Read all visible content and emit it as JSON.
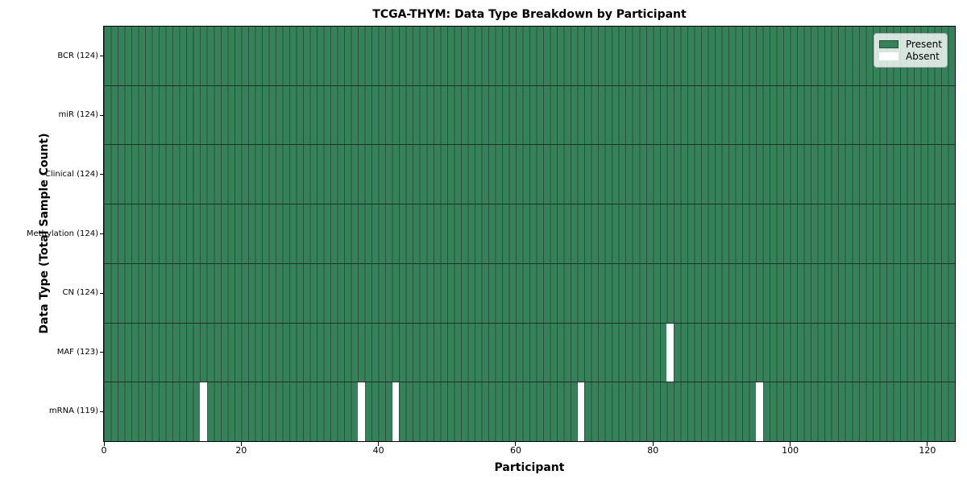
{
  "chart_data": {
    "type": "heatmap",
    "title": "TCGA-THYM: Data Type Breakdown by Participant",
    "xlabel": "Participant",
    "ylabel": "Data Type (Total Sample Count)",
    "x_ticks": [
      0,
      20,
      40,
      60,
      80,
      100,
      120
    ],
    "x_range": [
      0,
      124
    ],
    "n_participants": 124,
    "rows": [
      {
        "label": "BCR (124)",
        "data_type": "BCR",
        "present_count": 124,
        "absent_participants": []
      },
      {
        "label": "miR (124)",
        "data_type": "miR",
        "present_count": 124,
        "absent_participants": []
      },
      {
        "label": "Clinical (124)",
        "data_type": "Clinical",
        "present_count": 124,
        "absent_participants": []
      },
      {
        "label": "Methylation (124)",
        "data_type": "Methylation",
        "present_count": 124,
        "absent_participants": []
      },
      {
        "label": "CN (124)",
        "data_type": "CN",
        "present_count": 124,
        "absent_participants": []
      },
      {
        "label": "MAF (123)",
        "data_type": "MAF",
        "present_count": 123,
        "absent_participants": [
          82
        ]
      },
      {
        "label": "mRNA (119)",
        "data_type": "mRNA",
        "present_count": 119,
        "absent_participants": [
          14,
          37,
          42,
          69,
          95
        ]
      }
    ],
    "legend": [
      {
        "label": "Present",
        "color": "#35815A",
        "edge": "#24523A"
      },
      {
        "label": "Absent",
        "color": "#FFFFFF",
        "edge": "none"
      }
    ],
    "legend_position": "upper right",
    "grid": false,
    "colors": {
      "present": "#35815A",
      "absent": "#FFFFFF",
      "cell_edge": "#2A523C",
      "row_divider": "#1E3226",
      "spine": "#000000",
      "legend_border": "#B2B2B2"
    }
  }
}
